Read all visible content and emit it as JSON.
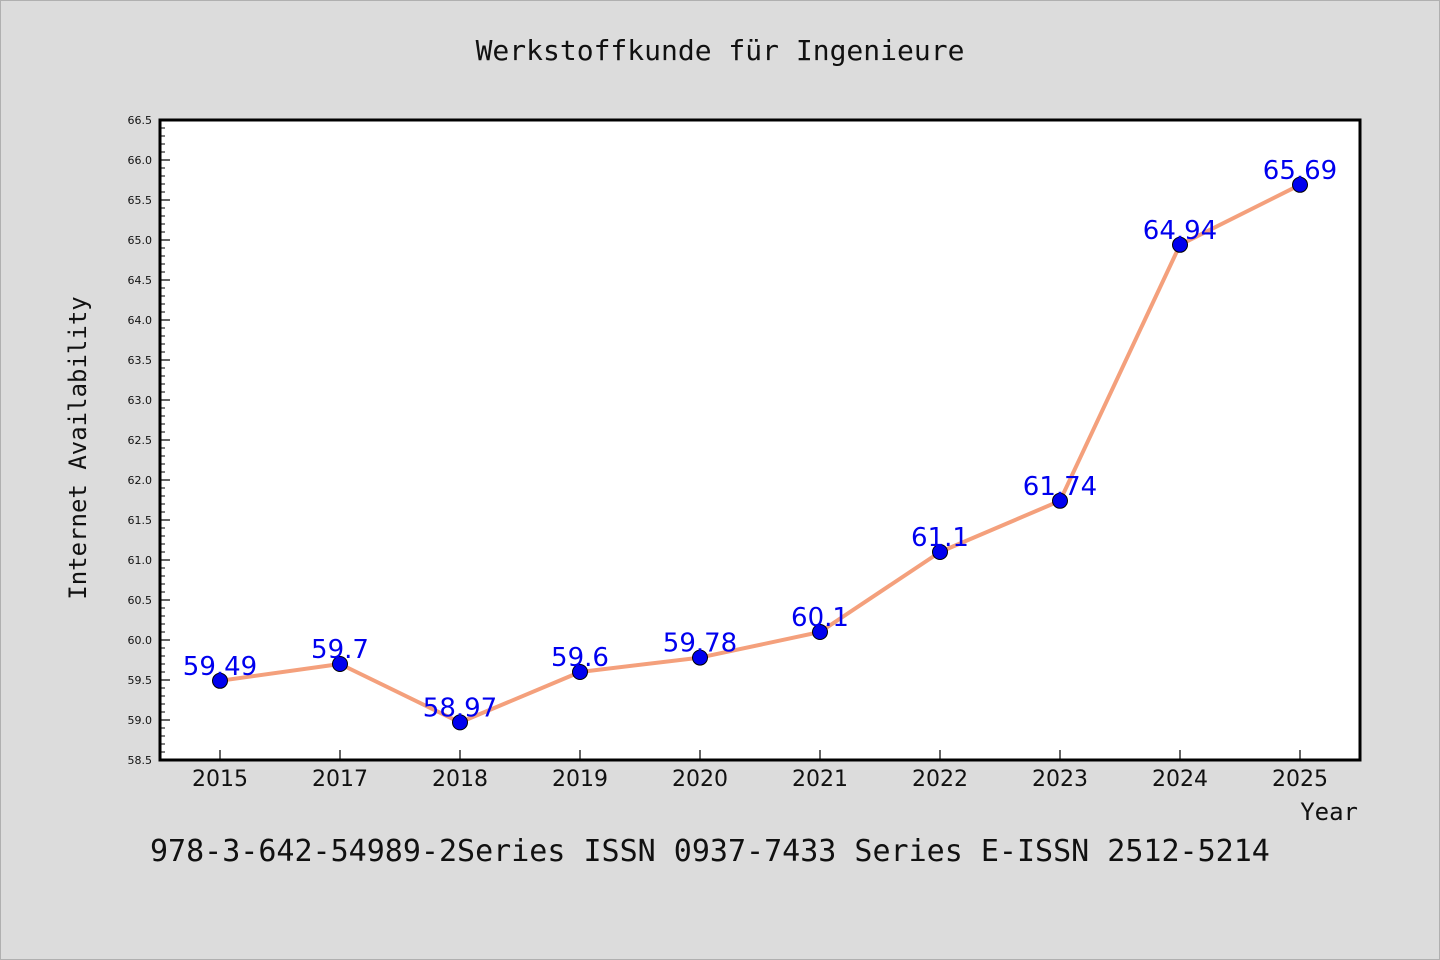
{
  "chart_data": {
    "type": "line",
    "title": "Werkstoffkunde für Ingenieure",
    "xlabel": "Year",
    "ylabel": "Internet Availability",
    "categories": [
      "2015",
      "2017",
      "2018",
      "2019",
      "2020",
      "2021",
      "2022",
      "2023",
      "2024",
      "2025"
    ],
    "series": [
      {
        "values": [
          59.49,
          59.7,
          58.97,
          59.6,
          59.78,
          60.1,
          61.1,
          61.74,
          64.94,
          65.69
        ],
        "labels": [
          "59.49",
          "59.7",
          "58.97",
          "59.6",
          "59.78",
          "60.1",
          "61.1",
          "61.74",
          "64.94",
          "65.69"
        ],
        "line_color": "#f4a07c",
        "marker_color": "#0000ee",
        "label_color": "#0000ee"
      }
    ],
    "ylim": [
      58.5,
      66.5
    ],
    "yticks": [
      "58.5",
      "59.0",
      "59.5",
      "60.0",
      "60.5",
      "61.0",
      "61.5",
      "62.0",
      "62.5",
      "63.0",
      "63.5",
      "64.0",
      "64.5",
      "65.0",
      "65.5",
      "66.0",
      "66.5"
    ],
    "grid": false,
    "legend": "none"
  },
  "footer": "978-3-642-54989-2Series ISSN 0937-7433 Series E-ISSN 2512-5214"
}
